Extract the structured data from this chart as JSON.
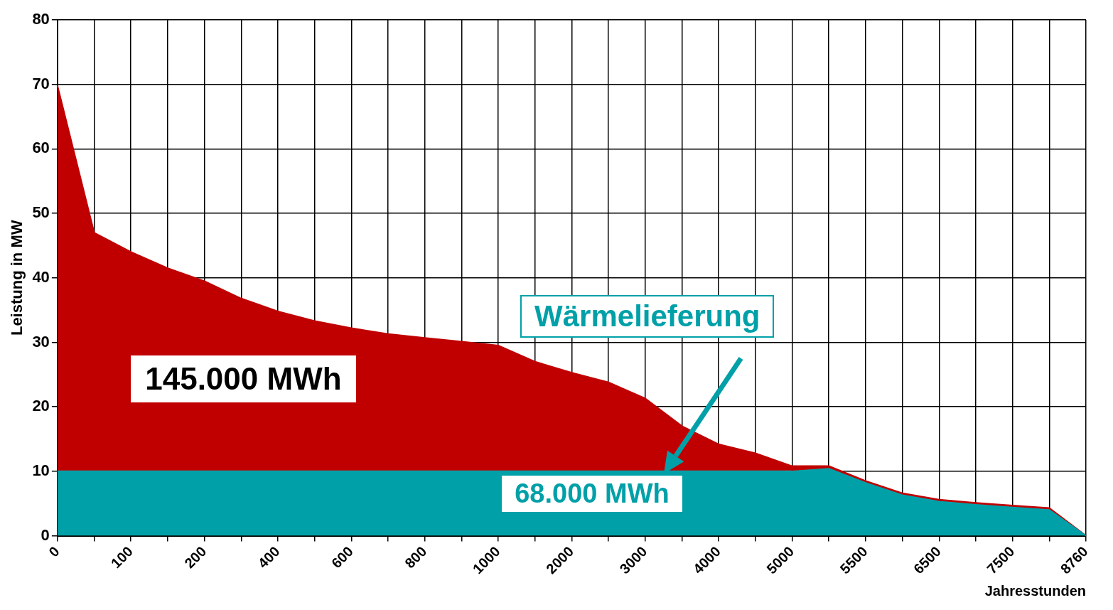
{
  "chart_data": {
    "type": "area",
    "stacked": true,
    "xlabel": "Jahresstunden",
    "ylabel": "Leistung in MW",
    "categories": [
      "0",
      null,
      "100",
      null,
      "200",
      null,
      "400",
      null,
      "600",
      null,
      "800",
      null,
      "1000",
      null,
      "2000",
      null,
      "3000",
      null,
      "4000",
      null,
      "5000",
      null,
      "5500",
      null,
      "6500",
      null,
      "7500",
      null,
      "8760"
    ],
    "series": [
      {
        "color": "#00a0a8",
        "values": [
          10,
          10,
          10,
          10,
          10,
          10,
          10,
          10,
          10,
          10,
          10,
          10,
          10,
          10,
          10,
          10,
          10,
          10,
          10,
          10,
          10,
          10.4,
          8.2,
          6.3,
          5.3,
          4.8,
          4.4,
          4.0,
          0
        ]
      },
      {
        "color": "#c00000",
        "values": [
          59.8,
          37,
          34,
          31.5,
          29.5,
          26.8,
          24.8,
          23.3,
          22.2,
          21.3,
          20.7,
          20.1,
          19.5,
          17,
          15.3,
          13.8,
          11.3,
          7,
          4.2,
          2.8,
          0.8,
          0.4,
          0.3,
          0.3,
          0.3,
          0.3,
          0.3,
          0.3,
          0
        ]
      }
    ],
    "ylim": [
      0,
      80
    ],
    "yticks": [
      0,
      10,
      20,
      30,
      40,
      50,
      60,
      70,
      80
    ],
    "grid": true,
    "annotations": [
      "145.000 MWh",
      "68.000 MWh",
      "Wärmelieferung"
    ]
  }
}
